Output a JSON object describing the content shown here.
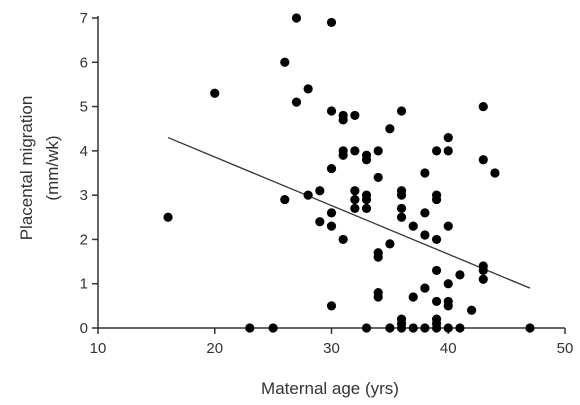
{
  "chart_data": {
    "type": "scatter",
    "xlabel": "Maternal age (yrs)",
    "ylabel": "Placental migration",
    "ylabel_unit": "(mm/wk)",
    "xlim": [
      10,
      50
    ],
    "ylim": [
      0,
      7
    ],
    "xticks": [
      10,
      20,
      30,
      40,
      50
    ],
    "yticks": [
      0,
      1,
      2,
      3,
      4,
      5,
      6,
      7
    ],
    "grid": false,
    "point_color": "#000000",
    "line_color": "#333333",
    "axis_color": "#333333",
    "trendline": {
      "x": [
        16,
        47
      ],
      "y": [
        4.3,
        0.9
      ]
    },
    "points": [
      {
        "x": 16,
        "y": 2.5
      },
      {
        "x": 20,
        "y": 5.3
      },
      {
        "x": 23,
        "y": 0
      },
      {
        "x": 25,
        "y": 0
      },
      {
        "x": 26,
        "y": 6.0
      },
      {
        "x": 26,
        "y": 2.9
      },
      {
        "x": 27,
        "y": 7.0
      },
      {
        "x": 27,
        "y": 5.1
      },
      {
        "x": 28,
        "y": 5.4
      },
      {
        "x": 28,
        "y": 3.0
      },
      {
        "x": 29,
        "y": 3.1
      },
      {
        "x": 29,
        "y": 2.4
      },
      {
        "x": 30,
        "y": 6.9
      },
      {
        "x": 30,
        "y": 4.9
      },
      {
        "x": 30,
        "y": 3.6
      },
      {
        "x": 30,
        "y": 2.6
      },
      {
        "x": 30,
        "y": 2.3
      },
      {
        "x": 30,
        "y": 0.5
      },
      {
        "x": 31,
        "y": 4.8
      },
      {
        "x": 31,
        "y": 4.7
      },
      {
        "x": 31,
        "y": 4.0
      },
      {
        "x": 31,
        "y": 3.9
      },
      {
        "x": 31,
        "y": 2.0
      },
      {
        "x": 32,
        "y": 4.8
      },
      {
        "x": 32,
        "y": 4.0
      },
      {
        "x": 32,
        "y": 3.1
      },
      {
        "x": 32,
        "y": 2.9
      },
      {
        "x": 32,
        "y": 2.7
      },
      {
        "x": 33,
        "y": 3.9
      },
      {
        "x": 33,
        "y": 3.8
      },
      {
        "x": 33,
        "y": 3.0
      },
      {
        "x": 33,
        "y": 2.9
      },
      {
        "x": 33,
        "y": 2.7
      },
      {
        "x": 33,
        "y": 0
      },
      {
        "x": 34,
        "y": 4.0
      },
      {
        "x": 34,
        "y": 3.4
      },
      {
        "x": 34,
        "y": 1.7
      },
      {
        "x": 34,
        "y": 1.6
      },
      {
        "x": 34,
        "y": 0.8
      },
      {
        "x": 34,
        "y": 0.7
      },
      {
        "x": 35,
        "y": 4.5
      },
      {
        "x": 35,
        "y": 1.9
      },
      {
        "x": 35,
        "y": 0
      },
      {
        "x": 36,
        "y": 4.9
      },
      {
        "x": 36,
        "y": 3.1
      },
      {
        "x": 36,
        "y": 3.0
      },
      {
        "x": 36,
        "y": 2.7
      },
      {
        "x": 36,
        "y": 2.5
      },
      {
        "x": 36,
        "y": 0.2
      },
      {
        "x": 36,
        "y": 0.1
      },
      {
        "x": 36,
        "y": 0
      },
      {
        "x": 37,
        "y": 2.3
      },
      {
        "x": 37,
        "y": 0.7
      },
      {
        "x": 37,
        "y": 0
      },
      {
        "x": 38,
        "y": 3.5
      },
      {
        "x": 38,
        "y": 2.6
      },
      {
        "x": 38,
        "y": 2.1
      },
      {
        "x": 38,
        "y": 0.9
      },
      {
        "x": 38,
        "y": 0
      },
      {
        "x": 39,
        "y": 4.0
      },
      {
        "x": 39,
        "y": 3.0
      },
      {
        "x": 39,
        "y": 2.9
      },
      {
        "x": 39,
        "y": 2.0
      },
      {
        "x": 39,
        "y": 1.3
      },
      {
        "x": 39,
        "y": 0.6
      },
      {
        "x": 39,
        "y": 0.2
      },
      {
        "x": 39,
        "y": 0.1
      },
      {
        "x": 39,
        "y": 0
      },
      {
        "x": 40,
        "y": 4.3
      },
      {
        "x": 40,
        "y": 4.0
      },
      {
        "x": 40,
        "y": 2.3
      },
      {
        "x": 40,
        "y": 1.0
      },
      {
        "x": 40,
        "y": 0.6
      },
      {
        "x": 40,
        "y": 0.5
      },
      {
        "x": 40,
        "y": 0
      },
      {
        "x": 41,
        "y": 1.2
      },
      {
        "x": 41,
        "y": 0
      },
      {
        "x": 42,
        "y": 0.4
      },
      {
        "x": 43,
        "y": 5.0
      },
      {
        "x": 43,
        "y": 3.8
      },
      {
        "x": 43,
        "y": 1.4
      },
      {
        "x": 43,
        "y": 1.3
      },
      {
        "x": 43,
        "y": 1.1
      },
      {
        "x": 44,
        "y": 3.5
      },
      {
        "x": 47,
        "y": 0
      }
    ]
  }
}
